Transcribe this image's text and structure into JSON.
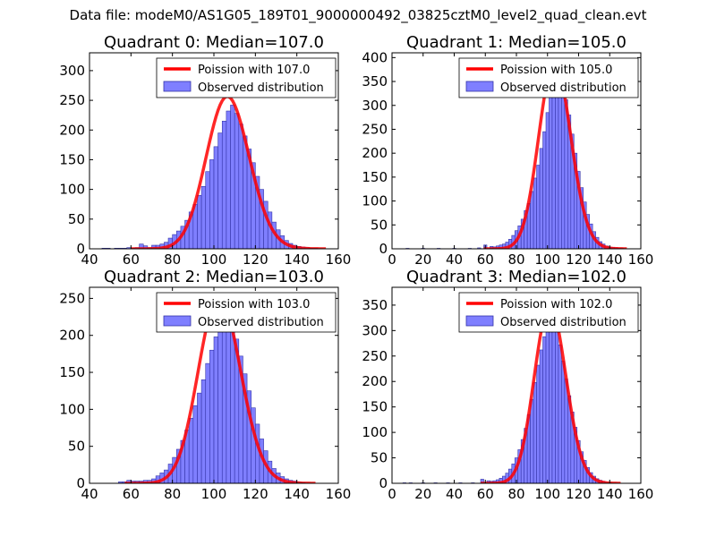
{
  "suptitle": "Data file: modeM0/AS1G05_189T01_9000000492_03825cztM0_level2_quad_clean.evt",
  "colors": {
    "poisson_line": "#ff0000",
    "bar_fill": "#7f7fff",
    "bar_edge": "#3434a8",
    "axis": "#000000",
    "legend_edge": "#000000"
  },
  "chart_data": [
    {
      "type": "bar",
      "title": "Quadrant 0: Median=107.0",
      "median": 107.0,
      "xlim": [
        40,
        160
      ],
      "ylim": [
        0,
        330
      ],
      "xticks": [
        40,
        60,
        80,
        100,
        120,
        140,
        160
      ],
      "yticks": [
        0,
        50,
        100,
        150,
        200,
        250,
        300
      ],
      "legend": {
        "placement": "top-right",
        "line_label": "Poission with 107.0",
        "bar_label": "Observed distribution"
      },
      "bins": [
        [
          47,
          1
        ],
        [
          49,
          1
        ],
        [
          51,
          0
        ],
        [
          53,
          1
        ],
        [
          55,
          1
        ],
        [
          57,
          1
        ],
        [
          59,
          2
        ],
        [
          61,
          1
        ],
        [
          63,
          2
        ],
        [
          65,
          8
        ],
        [
          67,
          5
        ],
        [
          69,
          2
        ],
        [
          71,
          6
        ],
        [
          73,
          6
        ],
        [
          75,
          8
        ],
        [
          77,
          11
        ],
        [
          79,
          18
        ],
        [
          81,
          24
        ],
        [
          83,
          30
        ],
        [
          85,
          38
        ],
        [
          87,
          48
        ],
        [
          89,
          62
        ],
        [
          91,
          75
        ],
        [
          93,
          90
        ],
        [
          95,
          105
        ],
        [
          97,
          130
        ],
        [
          99,
          150
        ],
        [
          101,
          172
        ],
        [
          103,
          195
        ],
        [
          105,
          215
        ],
        [
          107,
          232
        ],
        [
          109,
          242
        ],
        [
          111,
          228
        ],
        [
          113,
          210
        ],
        [
          115,
          190
        ],
        [
          117,
          168
        ],
        [
          119,
          145
        ],
        [
          121,
          122
        ],
        [
          123,
          100
        ],
        [
          125,
          80
        ],
        [
          127,
          62
        ],
        [
          129,
          45
        ],
        [
          131,
          32
        ],
        [
          133,
          22
        ],
        [
          135,
          14
        ],
        [
          137,
          9
        ],
        [
          139,
          6
        ],
        [
          141,
          4
        ],
        [
          143,
          3
        ],
        [
          145,
          2
        ],
        [
          147,
          1
        ],
        [
          149,
          1
        ]
      ]
    },
    {
      "type": "bar",
      "title": "Quadrant 1: Median=105.0",
      "median": 105.0,
      "xlim": [
        0,
        160
      ],
      "ylim": [
        0,
        410
      ],
      "xticks": [
        0,
        20,
        40,
        60,
        80,
        100,
        120,
        140,
        160
      ],
      "yticks": [
        0,
        50,
        100,
        150,
        200,
        250,
        300,
        350,
        400
      ],
      "legend": {
        "placement": "top-right",
        "line_label": "Poission with 105.0",
        "bar_label": "Observed distribution"
      },
      "bins": [
        [
          10,
          1
        ],
        [
          20,
          1
        ],
        [
          30,
          1
        ],
        [
          40,
          1
        ],
        [
          50,
          1
        ],
        [
          56,
          2
        ],
        [
          60,
          8
        ],
        [
          64,
          5
        ],
        [
          66,
          4
        ],
        [
          68,
          6
        ],
        [
          70,
          8
        ],
        [
          72,
          10
        ],
        [
          74,
          14
        ],
        [
          76,
          20
        ],
        [
          78,
          28
        ],
        [
          80,
          38
        ],
        [
          82,
          48
        ],
        [
          84,
          62
        ],
        [
          86,
          80
        ],
        [
          88,
          95
        ],
        [
          90,
          120
        ],
        [
          92,
          148
        ],
        [
          94,
          175
        ],
        [
          96,
          210
        ],
        [
          98,
          245
        ],
        [
          100,
          285
        ],
        [
          102,
          318
        ],
        [
          104,
          350
        ],
        [
          106,
          378
        ],
        [
          108,
          370
        ],
        [
          110,
          345
        ],
        [
          112,
          312
        ],
        [
          114,
          280
        ],
        [
          116,
          240
        ],
        [
          118,
          200
        ],
        [
          120,
          162
        ],
        [
          122,
          128
        ],
        [
          124,
          98
        ],
        [
          126,
          72
        ],
        [
          128,
          52
        ],
        [
          130,
          36
        ],
        [
          132,
          24
        ],
        [
          134,
          15
        ],
        [
          136,
          10
        ],
        [
          138,
          6
        ],
        [
          140,
          4
        ],
        [
          142,
          3
        ],
        [
          144,
          2
        ],
        [
          146,
          1
        ],
        [
          148,
          1
        ]
      ]
    },
    {
      "type": "bar",
      "title": "Quadrant 2: Median=103.0",
      "median": 103.0,
      "xlim": [
        40,
        160
      ],
      "ylim": [
        0,
        265
      ],
      "xticks": [
        40,
        60,
        80,
        100,
        120,
        140,
        160
      ],
      "yticks": [
        0,
        50,
        100,
        150,
        200,
        250
      ],
      "legend": {
        "placement": "top-right",
        "line_label": "Poission with 103.0",
        "bar_label": "Observed distribution"
      },
      "bins": [
        [
          55,
          2
        ],
        [
          57,
          2
        ],
        [
          59,
          4
        ],
        [
          61,
          3
        ],
        [
          63,
          3
        ],
        [
          65,
          3
        ],
        [
          67,
          4
        ],
        [
          69,
          4
        ],
        [
          71,
          6
        ],
        [
          73,
          10
        ],
        [
          75,
          14
        ],
        [
          77,
          18
        ],
        [
          79,
          26
        ],
        [
          81,
          35
        ],
        [
          83,
          46
        ],
        [
          85,
          58
        ],
        [
          87,
          72
        ],
        [
          89,
          88
        ],
        [
          91,
          105
        ],
        [
          93,
          122
        ],
        [
          95,
          140
        ],
        [
          97,
          162
        ],
        [
          99,
          180
        ],
        [
          101,
          198
        ],
        [
          103,
          218
        ],
        [
          105,
          234
        ],
        [
          107,
          230
        ],
        [
          109,
          215
        ],
        [
          111,
          195
        ],
        [
          113,
          172
        ],
        [
          115,
          148
        ],
        [
          117,
          125
        ],
        [
          119,
          102
        ],
        [
          121,
          80
        ],
        [
          123,
          60
        ],
        [
          125,
          44
        ],
        [
          127,
          30
        ],
        [
          129,
          20
        ],
        [
          131,
          14
        ],
        [
          133,
          9
        ],
        [
          135,
          6
        ],
        [
          137,
          4
        ],
        [
          139,
          3
        ],
        [
          141,
          2
        ],
        [
          143,
          1
        ]
      ]
    },
    {
      "type": "bar",
      "title": "Quadrant 3: Median=102.0",
      "median": 102.0,
      "xlim": [
        0,
        160
      ],
      "ylim": [
        0,
        385
      ],
      "xticks": [
        0,
        20,
        40,
        60,
        80,
        100,
        120,
        140,
        160
      ],
      "yticks": [
        0,
        50,
        100,
        150,
        200,
        250,
        300,
        350
      ],
      "legend": {
        "placement": "top-right",
        "line_label": "Poission with 102.0",
        "bar_label": "Observed distribution"
      },
      "bins": [
        [
          8,
          1
        ],
        [
          12,
          1
        ],
        [
          20,
          1
        ],
        [
          28,
          1
        ],
        [
          36,
          1
        ],
        [
          44,
          1
        ],
        [
          52,
          1
        ],
        [
          58,
          8
        ],
        [
          62,
          5
        ],
        [
          64,
          4
        ],
        [
          66,
          5
        ],
        [
          68,
          7
        ],
        [
          70,
          10
        ],
        [
          72,
          14
        ],
        [
          74,
          20
        ],
        [
          76,
          28
        ],
        [
          78,
          38
        ],
        [
          80,
          50
        ],
        [
          82,
          66
        ],
        [
          84,
          86
        ],
        [
          86,
          108
        ],
        [
          88,
          135
        ],
        [
          90,
          165
        ],
        [
          92,
          198
        ],
        [
          94,
          232
        ],
        [
          96,
          262
        ],
        [
          98,
          288
        ],
        [
          100,
          312
        ],
        [
          102,
          330
        ],
        [
          104,
          322
        ],
        [
          106,
          300
        ],
        [
          108,
          272
        ],
        [
          110,
          240
        ],
        [
          112,
          205
        ],
        [
          114,
          172
        ],
        [
          116,
          140
        ],
        [
          118,
          110
        ],
        [
          120,
          84
        ],
        [
          122,
          62
        ],
        [
          124,
          45
        ],
        [
          126,
          31
        ],
        [
          128,
          21
        ],
        [
          130,
          14
        ],
        [
          132,
          9
        ],
        [
          134,
          6
        ],
        [
          136,
          4
        ],
        [
          138,
          2
        ],
        [
          140,
          1
        ]
      ]
    }
  ]
}
